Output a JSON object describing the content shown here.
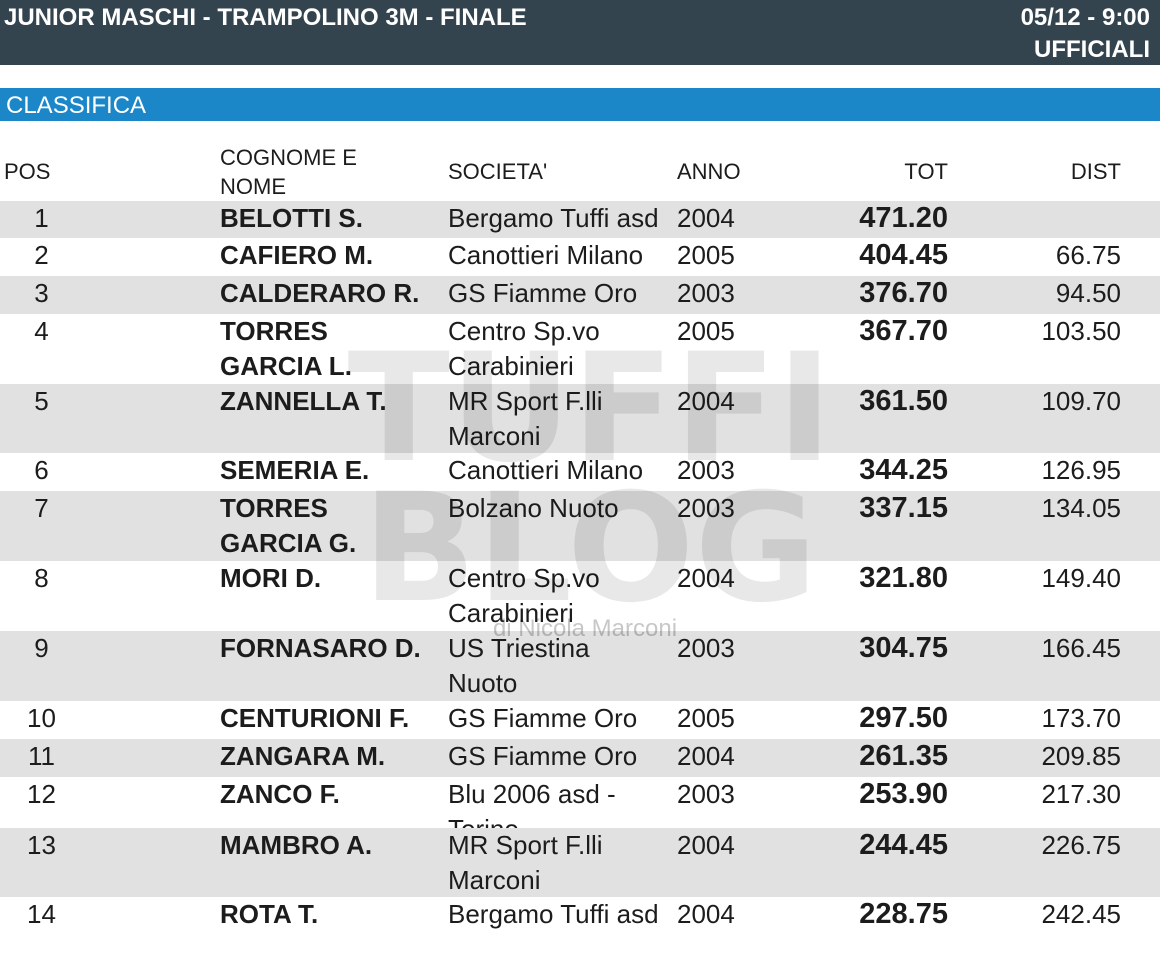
{
  "header": {
    "title": "JUNIOR MASCHI - TRAMPOLINO 3M - FINALE",
    "datetime": "05/12 - 9:00",
    "status": "UFFICIALI"
  },
  "section_title": "CLASSIFICA",
  "columns": {
    "pos": "POS",
    "name_line1": "COGNOME E",
    "name_line2": "NOME",
    "club": "SOCIETA'",
    "year": "ANNO",
    "total": "TOT",
    "dist": "DIST"
  },
  "watermark": {
    "line1": "TUFFI",
    "line2": "BLOG",
    "byline": "di Nicola Marconi"
  },
  "rows": [
    {
      "pos": "1",
      "name": [
        "BELOTTI S."
      ],
      "club": [
        "Bergamo Tuffi asd"
      ],
      "year": "2004",
      "total": "471.20",
      "dist": ""
    },
    {
      "pos": "2",
      "name": [
        "CAFIERO M."
      ],
      "club": [
        "Canottieri Milano"
      ],
      "year": "2005",
      "total": "404.45",
      "dist": "66.75"
    },
    {
      "pos": "3",
      "name": [
        "CALDERARO R."
      ],
      "club": [
        "GS Fiamme Oro"
      ],
      "year": "2003",
      "total": "376.70",
      "dist": "94.50"
    },
    {
      "pos": "4",
      "name": [
        "TORRES",
        "GARCIA L."
      ],
      "club": [
        "Centro Sp.vo",
        "Carabinieri"
      ],
      "year": "2005",
      "total": "367.70",
      "dist": "103.50"
    },
    {
      "pos": "5",
      "name": [
        "ZANNELLA T."
      ],
      "club": [
        "MR Sport F.lli",
        "Marconi"
      ],
      "year": "2004",
      "total": "361.50",
      "dist": "109.70"
    },
    {
      "pos": "6",
      "name": [
        "SEMERIA E."
      ],
      "club": [
        "Canottieri Milano"
      ],
      "year": "2003",
      "total": "344.25",
      "dist": "126.95"
    },
    {
      "pos": "7",
      "name": [
        "TORRES",
        "GARCIA G."
      ],
      "club": [
        "Bolzano Nuoto"
      ],
      "year": "2003",
      "total": "337.15",
      "dist": "134.05"
    },
    {
      "pos": "8",
      "name": [
        "MORI D."
      ],
      "club": [
        "Centro Sp.vo",
        "Carabinieri"
      ],
      "year": "2004",
      "total": "321.80",
      "dist": "149.40"
    },
    {
      "pos": "9",
      "name": [
        "FORNASARO D."
      ],
      "club": [
        "US Triestina",
        "Nuoto"
      ],
      "year": "2003",
      "total": "304.75",
      "dist": "166.45"
    },
    {
      "pos": "10",
      "name": [
        "CENTURIONI F."
      ],
      "club": [
        "GS Fiamme Oro"
      ],
      "year": "2005",
      "total": "297.50",
      "dist": "173.70"
    },
    {
      "pos": "11",
      "name": [
        "ZANGARA M."
      ],
      "club": [
        "GS Fiamme Oro"
      ],
      "year": "2004",
      "total": "261.35",
      "dist": "209.85"
    },
    {
      "pos": "12",
      "name": [
        "ZANCO F."
      ],
      "club": [
        "Blu 2006 asd -",
        "Torino"
      ],
      "year": "2003",
      "total": "253.90",
      "dist": "217.30"
    },
    {
      "pos": "13",
      "name": [
        "MAMBRO A."
      ],
      "club": [
        "MR Sport F.lli",
        "Marconi"
      ],
      "year": "2004",
      "total": "244.45",
      "dist": "226.75"
    },
    {
      "pos": "14",
      "name": [
        "ROTA T."
      ],
      "club": [
        "Bergamo Tuffi asd"
      ],
      "year": "2004",
      "total": "228.75",
      "dist": "242.45"
    }
  ]
}
